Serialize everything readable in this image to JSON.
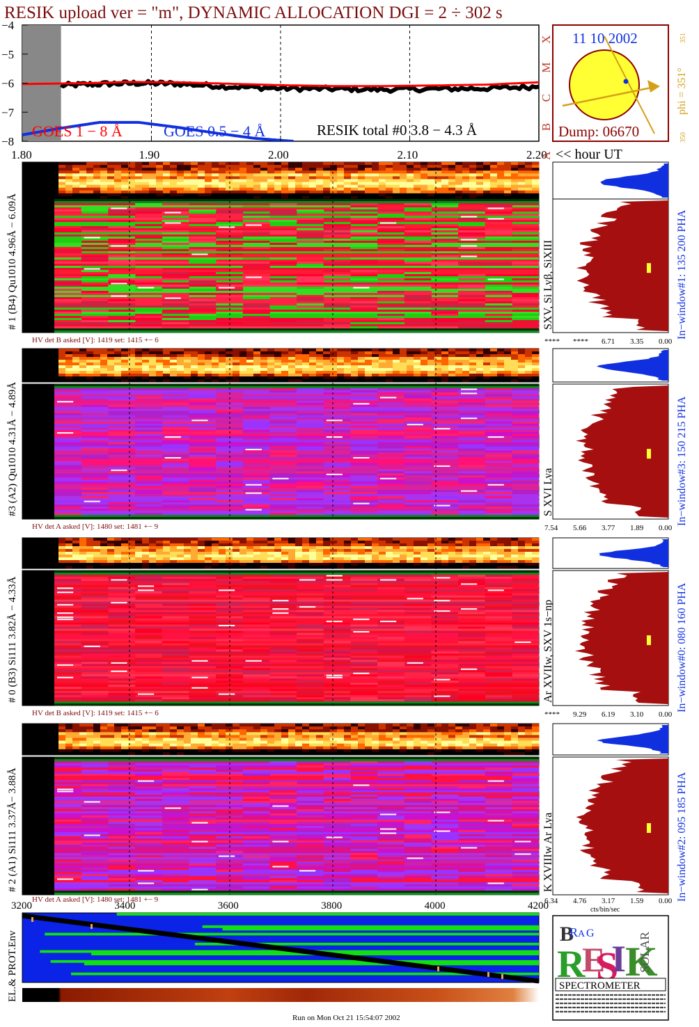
{
  "header": {
    "title": "RESIK upload ver = \"m\", DYNAMIC ALLOCATION  DGI =   2 ÷ 302 s",
    "footer": "Run on Mon Oct 21 15:54:07 2002"
  },
  "colors": {
    "title": "#7a0b0b",
    "goes_long": "#ff0000",
    "goes_short": "#1030e0",
    "resik_total": "#000000",
    "histogram": "#a50f0f",
    "histogram_top": "#1030e0",
    "ring": "#8b0000",
    "sun": "#ffff33",
    "axis_class": "#c0392b",
    "phi": "#d4a017",
    "env_blue": "#0a23e6",
    "env_green": "#11e011"
  },
  "chart_data": [
    {
      "type": "line",
      "title": "",
      "xlabel": "<< hour UT",
      "x_ticks": [
        "1.80",
        "1.90",
        "2.00",
        "2.10",
        "2.20"
      ],
      "x_tick_values": [
        1.8,
        1.9,
        2.0,
        2.1,
        2.2
      ],
      "xlim": [
        1.8,
        2.2
      ],
      "ylim": [
        -8,
        -4
      ],
      "y_ticks": [
        "−4",
        "−5",
        "−6",
        "−7",
        "−8"
      ],
      "y_tick_values": [
        -4,
        -5,
        -6,
        -7,
        -8
      ],
      "class_labels": [
        "X",
        "M",
        "C",
        "B",
        "A"
      ],
      "grid_x": [
        1.8,
        1.9,
        2.0,
        2.1
      ],
      "shaded_range": [
        1.8,
        1.83
      ],
      "legend": [
        "GOES 1 − 8 Å",
        "GOES 0.5 − 4 Å",
        "RESIK total #0  3.8 − 4.3 Å"
      ],
      "series": [
        {
          "name": "GOES 1 − 8 Å",
          "x": [
            1.8,
            1.85,
            1.88,
            1.92,
            1.96,
            2.0,
            2.04,
            2.08,
            2.12,
            2.16,
            2.2
          ],
          "values": [
            -6.03,
            -6.0,
            -5.96,
            -5.97,
            -6.02,
            -6.07,
            -6.1,
            -6.1,
            -6.08,
            -6.05,
            -5.97
          ]
        },
        {
          "name": "GOES 0.5 − 4 Å",
          "x": [
            1.8,
            1.83,
            1.86,
            1.89,
            1.92,
            1.95,
            1.98,
            2.01
          ],
          "values": [
            -7.78,
            -7.55,
            -7.35,
            -7.35,
            -7.52,
            -7.72,
            -7.9,
            -8.0
          ]
        },
        {
          "name": "RESIK total #0  3.8 − 4.3 Å",
          "x": [
            1.83,
            1.86,
            1.89,
            1.92,
            1.96,
            2.0,
            2.04,
            2.08,
            2.12,
            2.16,
            2.2
          ],
          "values": [
            -6.08,
            -6.03,
            -6.0,
            -6.02,
            -6.12,
            -6.18,
            -6.2,
            -6.22,
            -6.2,
            -6.18,
            -6.12
          ]
        }
      ]
    },
    {
      "type": "heatmap",
      "name": "# 1 (B4) Qu1010 4.96Å − 6.09Å",
      "axis_label": "# 1 (B4) Qu1010 4.96Å − 6.09Å",
      "hv_text": "HV det B asked [V]:  1419 set:  1415  +−    6",
      "line_label": "SXV, Si Lyβ, SiXIII",
      "window_label": "In−window#1:  135 200 PHA",
      "hist_ticks": [
        "****",
        "****",
        "6.71",
        "3.35",
        "0.00"
      ],
      "dominant": "green-red"
    },
    {
      "type": "heatmap",
      "name": "#3 (A2) Qu1010  4.31Å − 4.89Å",
      "axis_label": "#3 (A2) Qu1010  4.31Å − 4.89Å",
      "hv_text": "HV det A asked [V]:  1480 set:  1481  +−    9",
      "line_label": "S XVI Lya",
      "window_label": "In−window#3:  150 215 PHA",
      "hist_ticks": [
        "7.54",
        "5.66",
        "3.77",
        "1.89",
        "0.00"
      ],
      "dominant": "purple"
    },
    {
      "type": "heatmap",
      "name": "# 0 (B3) Si111  3.82Å − 4.33Å",
      "axis_label": "# 0 (B3) Si111  3.82Å − 4.33Å",
      "hv_text": "HV det B asked [V]:  1419 set:  1415  +−    6",
      "line_label": "Ar XVIIw,  SXV 1s−np",
      "window_label": "In−window#0:  080 160 PHA",
      "hist_ticks": [
        "****",
        "9.29",
        "6.19",
        "3.10",
        "0.00"
      ],
      "dominant": "red"
    },
    {
      "type": "heatmap",
      "name": "# 2 (A1) Si111  3.37Å− 3.88Å",
      "axis_label": "# 2 (A1) Si111  3.37Å− 3.88Å",
      "hv_text": "HV det A asked [V]:  1480 set:  1481  +−    9",
      "line_label": "K XVIIIw  Ar Lya",
      "window_label": "In−window#2:  095 185 PHA",
      "hist_ticks": [
        "6.34",
        "4.76",
        "3.17",
        "1.59",
        "0.00"
      ],
      "hist_unit": "cts/bin/sec",
      "dominant": "purple-red"
    },
    {
      "type": "heatmap",
      "name": "EL.& PROT.Env",
      "axis_label": "EL.& PROT.Env",
      "x_ticks": [
        "3200",
        "3400",
        "3600",
        "3800",
        "4000",
        "4200"
      ],
      "x_tick_values": [
        3200,
        3400,
        3600,
        3800,
        4000,
        4200
      ]
    }
  ],
  "sun_panel": {
    "date": "11 10 2002",
    "dump": "Dump: 06670",
    "phi": "phi = 351°",
    "phi_sub": "351",
    "phi_bottom": "350"
  },
  "logo": {
    "letters": [
      "B",
      "R",
      "A",
      "G",
      "R",
      "E",
      "S",
      "I",
      "K",
      "S",
      "O",
      "L",
      "A",
      "R"
    ],
    "spectrometer": "SPECTROMETER"
  }
}
